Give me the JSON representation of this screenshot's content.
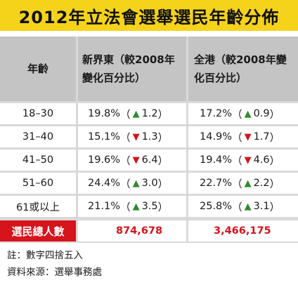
{
  "title": "2012年立法會選舉選民年齡分佈",
  "header": {
    "age": "年齡",
    "nt_east": "新界東（較2008年變化百分比）",
    "hk_total": "全港（較2008年變化百分比）"
  },
  "rows": [
    {
      "age": "18–30",
      "nt_pct": "19.8%",
      "nt_dir": "up",
      "nt_change": "1.2",
      "hk_pct": "17.2%",
      "hk_dir": "up",
      "hk_change": "0.9"
    },
    {
      "age": "31–40",
      "nt_pct": "15.1%",
      "nt_dir": "down",
      "nt_change": "1.3",
      "hk_pct": "14.9%",
      "hk_dir": "down",
      "hk_change": "1.7"
    },
    {
      "age": "41–50",
      "nt_pct": "19.6%",
      "nt_dir": "down",
      "nt_change": "6.4",
      "hk_pct": "19.4%",
      "hk_dir": "down",
      "hk_change": "4.6"
    },
    {
      "age": "51–60",
      "nt_pct": "24.4%",
      "nt_dir": "up",
      "nt_change": "3.0",
      "hk_pct": "22.7%",
      "hk_dir": "up",
      "hk_change": "2.2"
    },
    {
      "age": "61或以上",
      "nt_pct": "21.1%",
      "nt_dir": "up",
      "nt_change": "3.5",
      "hk_pct": "25.8%",
      "hk_dir": "up",
      "hk_change": "3.1"
    }
  ],
  "total": {
    "label": "選民總人數",
    "nt_east": "874,678",
    "hk_total": "3,466,175"
  },
  "notes": {
    "note": "註：數字四捨五入",
    "source": "資料來源：選舉事務處"
  },
  "symbols": {
    "open": "（",
    "close": "）",
    "up": "▲",
    "down": "▼"
  },
  "colors": {
    "title_bg": "#f5d31a",
    "header_bg": "#c4c4c4",
    "up": "#2e8b2e",
    "down": "#d6141c",
    "total_label_bg": "#d6141c"
  }
}
